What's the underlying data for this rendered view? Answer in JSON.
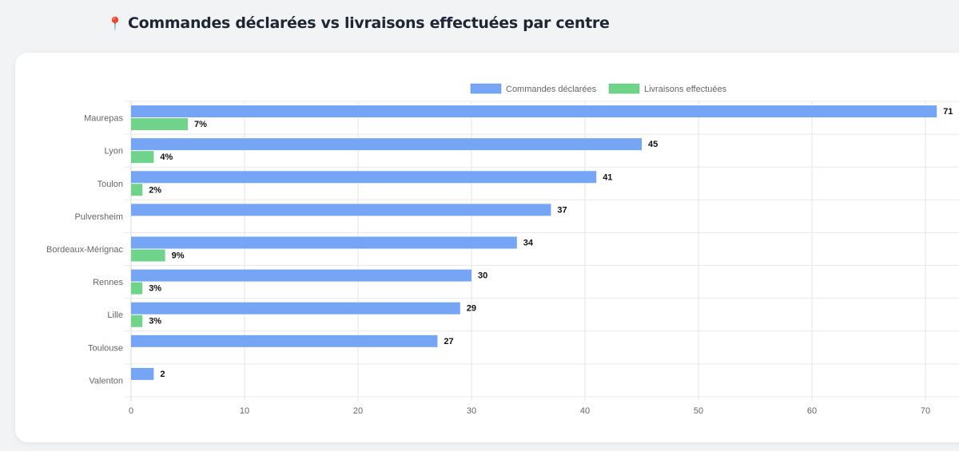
{
  "page": {
    "title": "Commandes déclarées vs livraisons effectuées par centre",
    "title_icon": "pin-icon"
  },
  "chart_data": {
    "type": "bar",
    "orientation": "horizontal",
    "title": "Commandes déclarées vs livraisons effectuées par centre",
    "xlabel": "",
    "ylabel": "",
    "xlim": [
      0,
      73
    ],
    "xticks": [
      0,
      10,
      20,
      30,
      40,
      50,
      60,
      70
    ],
    "grid": true,
    "legend_position": "top",
    "categories": [
      "Maurepas",
      "Lyon",
      "Toulon",
      "Pulversheim",
      "Bordeaux-Mérignac",
      "Rennes",
      "Lille",
      "Toulouse",
      "Valenton"
    ],
    "series": [
      {
        "name": "Commandes déclarées",
        "color": "#76a5f5",
        "values": [
          71,
          45,
          41,
          37,
          34,
          30,
          29,
          27,
          2
        ],
        "labels": [
          "71",
          "45",
          "41",
          "37",
          "34",
          "30",
          "29",
          "27",
          "2"
        ]
      },
      {
        "name": "Livraisons effectuées",
        "color": "#6fd38a",
        "values": [
          5,
          2,
          1,
          0,
          3,
          1,
          1,
          0,
          0
        ],
        "labels": [
          "7%",
          "4%",
          "2%",
          "",
          "9%",
          "3%",
          "3%",
          "",
          ""
        ]
      }
    ]
  }
}
